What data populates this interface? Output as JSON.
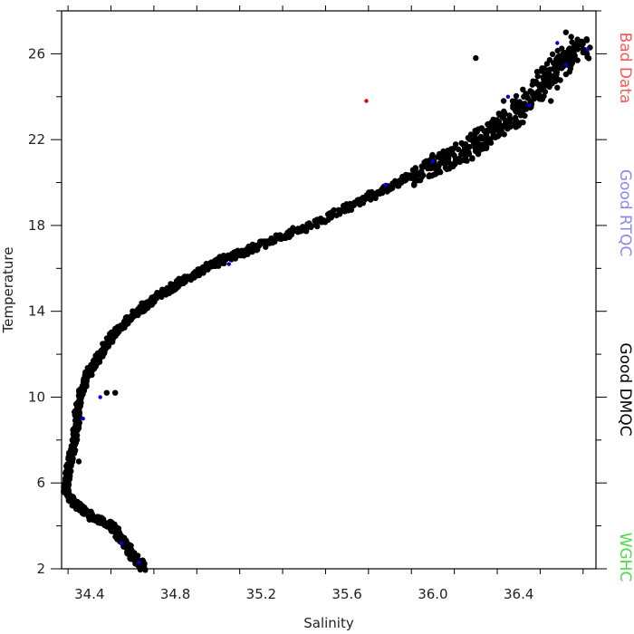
{
  "chart_data": {
    "type": "scatter",
    "xlabel": "Salinity",
    "ylabel": "Temperature",
    "xlim": [
      34.27,
      36.76
    ],
    "ylim": [
      2,
      28
    ],
    "x_ticks": [
      "34.4",
      "34.8",
      "35.2",
      "35.6",
      "36.0",
      "36.4"
    ],
    "y_ticks": [
      "2",
      "6",
      "10",
      "14",
      "18",
      "22",
      "26"
    ],
    "x_tick_values": [
      34.4,
      34.8,
      35.2,
      35.6,
      36.0,
      36.4
    ],
    "y_tick_values": [
      2,
      6,
      10,
      14,
      18,
      22,
      26
    ],
    "legend_placement": "right",
    "legend": [
      {
        "name": "Bad Data",
        "color": "#ff5555"
      },
      {
        "name": "Good RTQC",
        "color": "#8888ee"
      },
      {
        "name": "Good DMQC",
        "color": "#000000"
      },
      {
        "name": "WGHC",
        "color": "#44dd44"
      }
    ],
    "series": [
      {
        "name": "Good DMQC",
        "color": "#000000",
        "points": [
          [
            34.65,
            2.1
          ],
          [
            34.6,
            2.6
          ],
          [
            34.56,
            3.3
          ],
          [
            34.5,
            4.0
          ],
          [
            34.4,
            4.5
          ],
          [
            34.33,
            5.0
          ],
          [
            34.29,
            5.7
          ],
          [
            34.3,
            6.5
          ],
          [
            34.32,
            7.5
          ],
          [
            34.34,
            8.6
          ],
          [
            34.35,
            9.8
          ],
          [
            34.39,
            11.0
          ],
          [
            34.45,
            12.0
          ],
          [
            34.52,
            13.0
          ],
          [
            34.6,
            13.8
          ],
          [
            34.72,
            14.7
          ],
          [
            34.85,
            15.5
          ],
          [
            35.0,
            16.3
          ],
          [
            35.2,
            17.1
          ],
          [
            35.45,
            18.1
          ],
          [
            35.7,
            19.3
          ],
          [
            35.9,
            20.3
          ],
          [
            36.05,
            21.0
          ],
          [
            36.2,
            21.8
          ],
          [
            36.3,
            22.5
          ],
          [
            36.42,
            23.5
          ],
          [
            36.52,
            24.6
          ],
          [
            36.6,
            25.6
          ],
          [
            36.7,
            26.4
          ],
          [
            36.62,
            27.0
          ],
          [
            36.2,
            25.8
          ],
          [
            36.33,
            23.8
          ],
          [
            36.42,
            22.8
          ],
          [
            36.55,
            23.8
          ],
          [
            34.48,
            10.2
          ],
          [
            34.52,
            10.2
          ],
          [
            34.33,
            9.3
          ],
          [
            34.35,
            7.0
          ]
        ]
      },
      {
        "name": "Good RTQC",
        "color": "#0000dd",
        "points": [
          [
            34.63,
            2.3
          ],
          [
            34.55,
            3.2
          ],
          [
            34.45,
            10.0
          ],
          [
            34.37,
            9.0
          ],
          [
            35.05,
            16.2
          ],
          [
            35.78,
            19.9
          ],
          [
            36.0,
            21.0
          ],
          [
            36.58,
            26.5
          ],
          [
            36.35,
            24.0
          ],
          [
            36.45,
            23.6
          ],
          [
            36.72,
            26.2
          ],
          [
            36.62,
            25.5
          ]
        ]
      },
      {
        "name": "Bad Data",
        "color": "#dd0000",
        "points": [
          [
            35.69,
            23.8
          ]
        ]
      }
    ]
  }
}
